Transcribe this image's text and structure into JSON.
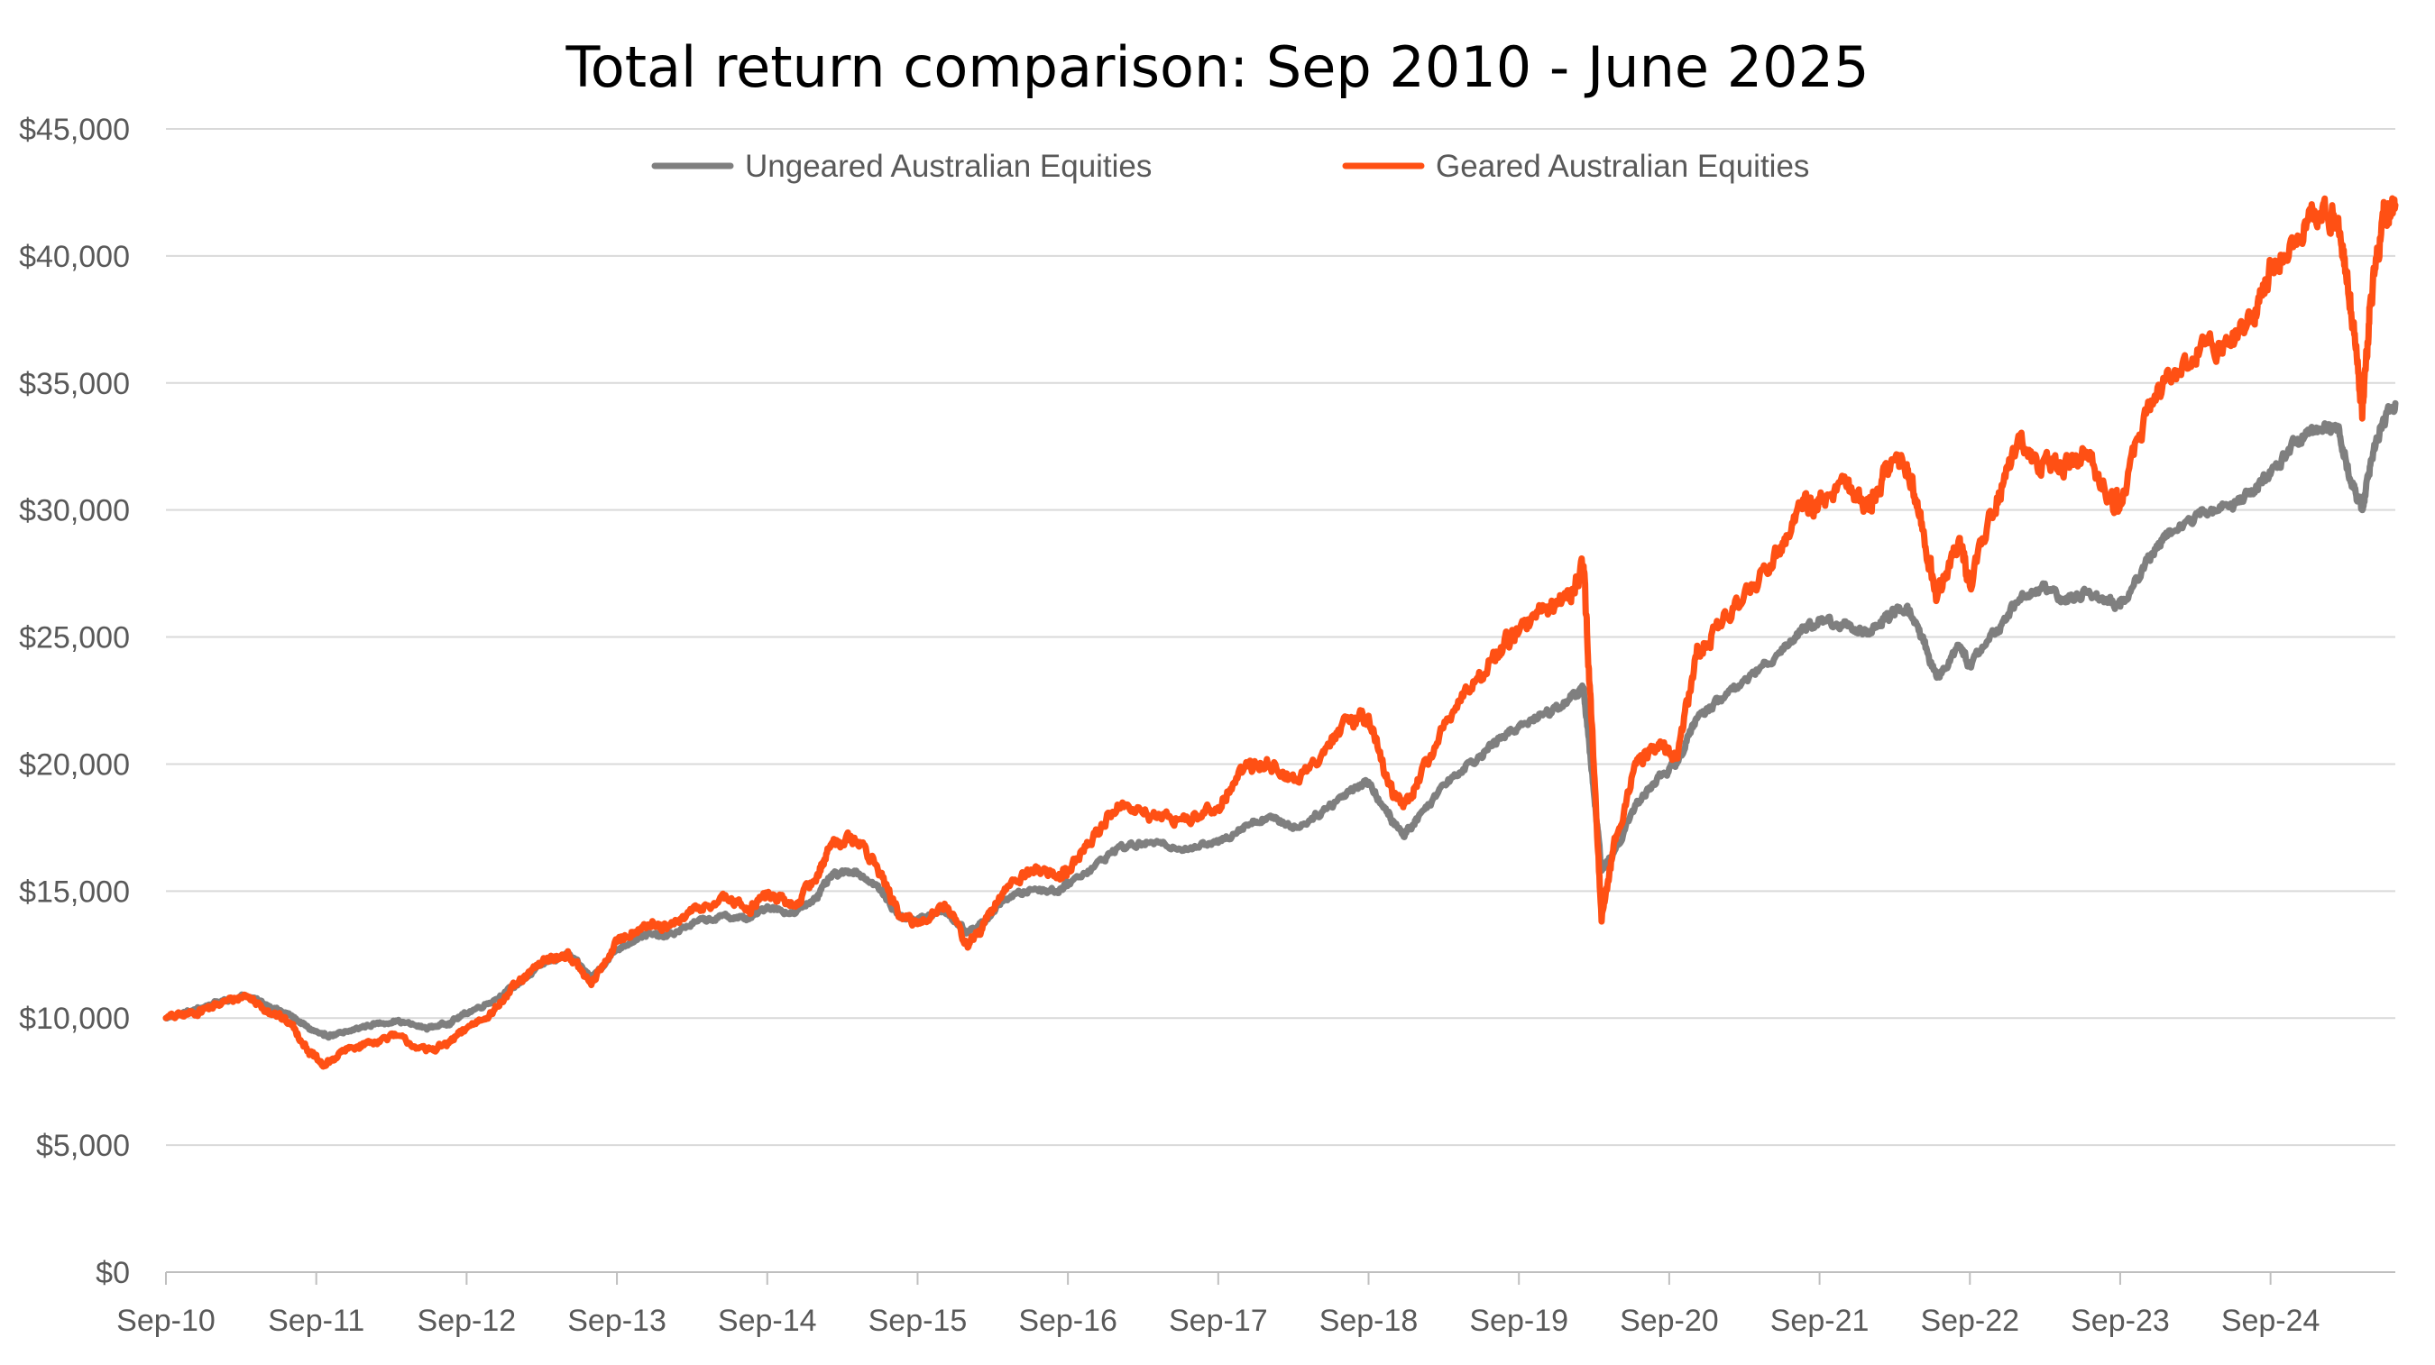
{
  "chart_data": {
    "type": "line",
    "title": "Total return comparison: Sep 2010 - June 2025",
    "xlabel": "",
    "ylabel": "",
    "ylim": [
      0,
      45000
    ],
    "xlim": [
      2010.67,
      2025.5
    ],
    "yticks": [
      0,
      5000,
      10000,
      15000,
      20000,
      25000,
      30000,
      35000,
      40000,
      45000
    ],
    "ytick_labels": [
      "$0",
      "$5,000",
      "$10,000",
      "$15,000",
      "$20,000",
      "$25,000",
      "$30,000",
      "$35,000",
      "$40,000",
      "$45,000"
    ],
    "xticks": [
      2010.67,
      2011.67,
      2012.67,
      2013.67,
      2014.67,
      2015.67,
      2016.67,
      2017.67,
      2018.67,
      2019.67,
      2020.67,
      2021.67,
      2022.67,
      2023.67,
      2024.67
    ],
    "xtick_labels": [
      "Sep-10",
      "Sep-11",
      "Sep-12",
      "Sep-13",
      "Sep-14",
      "Sep-15",
      "Sep-16",
      "Sep-17",
      "Sep-18",
      "Sep-19",
      "Sep-20",
      "Sep-21",
      "Sep-22",
      "Sep-23",
      "Sep-24"
    ],
    "grid": "horizontal",
    "legend_position": "top-center",
    "series": [
      {
        "name": "Ungeared Australian Equities",
        "color": "#7f7f7f",
        "points": [
          [
            2010.67,
            10000
          ],
          [
            2010.85,
            10300
          ],
          [
            2011.0,
            10600
          ],
          [
            2011.2,
            10900
          ],
          [
            2011.35,
            10500
          ],
          [
            2011.5,
            10100
          ],
          [
            2011.62,
            9600
          ],
          [
            2011.72,
            9300
          ],
          [
            2011.85,
            9400
          ],
          [
            2012.0,
            9700
          ],
          [
            2012.2,
            9900
          ],
          [
            2012.4,
            9600
          ],
          [
            2012.55,
            9800
          ],
          [
            2012.67,
            10200
          ],
          [
            2012.85,
            10700
          ],
          [
            2013.0,
            11300
          ],
          [
            2013.2,
            12200
          ],
          [
            2013.35,
            12500
          ],
          [
            2013.5,
            11600
          ],
          [
            2013.67,
            12700
          ],
          [
            2013.85,
            13300
          ],
          [
            2014.0,
            13200
          ],
          [
            2014.2,
            13800
          ],
          [
            2014.4,
            14000
          ],
          [
            2014.55,
            13900
          ],
          [
            2014.67,
            14400
          ],
          [
            2014.85,
            14100
          ],
          [
            2015.0,
            14800
          ],
          [
            2015.1,
            15600
          ],
          [
            2015.25,
            15800
          ],
          [
            2015.4,
            15200
          ],
          [
            2015.55,
            14000
          ],
          [
            2015.67,
            13900
          ],
          [
            2015.85,
            14200
          ],
          [
            2016.0,
            13400
          ],
          [
            2016.1,
            13700
          ],
          [
            2016.25,
            14700
          ],
          [
            2016.45,
            15100
          ],
          [
            2016.6,
            15000
          ],
          [
            2016.67,
            15300
          ],
          [
            2016.85,
            16000
          ],
          [
            2017.0,
            16700
          ],
          [
            2017.2,
            16900
          ],
          [
            2017.45,
            16700
          ],
          [
            2017.67,
            16900
          ],
          [
            2017.85,
            17600
          ],
          [
            2018.0,
            17900
          ],
          [
            2018.2,
            17500
          ],
          [
            2018.4,
            18300
          ],
          [
            2018.55,
            19000
          ],
          [
            2018.67,
            19300
          ],
          [
            2018.8,
            18000
          ],
          [
            2018.9,
            17200
          ],
          [
            2019.0,
            17900
          ],
          [
            2019.2,
            19400
          ],
          [
            2019.4,
            20300
          ],
          [
            2019.55,
            21000
          ],
          [
            2019.67,
            21500
          ],
          [
            2019.85,
            22000
          ],
          [
            2020.0,
            22500
          ],
          [
            2020.1,
            23000
          ],
          [
            2020.15,
            20000
          ],
          [
            2020.22,
            15800
          ],
          [
            2020.3,
            16500
          ],
          [
            2020.45,
            18400
          ],
          [
            2020.6,
            19500
          ],
          [
            2020.72,
            20000
          ],
          [
            2020.85,
            21800
          ],
          [
            2021.0,
            22500
          ],
          [
            2021.2,
            23400
          ],
          [
            2021.4,
            24400
          ],
          [
            2021.55,
            25300
          ],
          [
            2021.67,
            25600
          ],
          [
            2021.85,
            25500
          ],
          [
            2022.0,
            25100
          ],
          [
            2022.1,
            25700
          ],
          [
            2022.25,
            26200
          ],
          [
            2022.35,
            25000
          ],
          [
            2022.45,
            23400
          ],
          [
            2022.6,
            24600
          ],
          [
            2022.67,
            23900
          ],
          [
            2022.85,
            25300
          ],
          [
            2023.0,
            26500
          ],
          [
            2023.15,
            27000
          ],
          [
            2023.3,
            26400
          ],
          [
            2023.45,
            26800
          ],
          [
            2023.6,
            26400
          ],
          [
            2023.67,
            26200
          ],
          [
            2023.85,
            28000
          ],
          [
            2024.0,
            29200
          ],
          [
            2024.2,
            29800
          ],
          [
            2024.4,
            30200
          ],
          [
            2024.55,
            30700
          ],
          [
            2024.67,
            31400
          ],
          [
            2024.85,
            32800
          ],
          [
            2025.0,
            33200
          ],
          [
            2025.12,
            33300
          ],
          [
            2025.2,
            31200
          ],
          [
            2025.28,
            30000
          ],
          [
            2025.33,
            31700
          ],
          [
            2025.42,
            33600
          ],
          [
            2025.5,
            34200
          ]
        ]
      },
      {
        "name": "Geared Australian Equities",
        "color": "#ff5014",
        "points": [
          [
            2010.67,
            10000
          ],
          [
            2010.85,
            10200
          ],
          [
            2011.0,
            10500
          ],
          [
            2011.2,
            10900
          ],
          [
            2011.35,
            10300
          ],
          [
            2011.5,
            9800
          ],
          [
            2011.62,
            8700
          ],
          [
            2011.72,
            8100
          ],
          [
            2011.85,
            8700
          ],
          [
            2012.0,
            9000
          ],
          [
            2012.2,
            9300
          ],
          [
            2012.4,
            8700
          ],
          [
            2012.55,
            9000
          ],
          [
            2012.67,
            9600
          ],
          [
            2012.85,
            10300
          ],
          [
            2013.0,
            11300
          ],
          [
            2013.2,
            12300
          ],
          [
            2013.35,
            12500
          ],
          [
            2013.5,
            11300
          ],
          [
            2013.67,
            13000
          ],
          [
            2013.85,
            13700
          ],
          [
            2014.0,
            13500
          ],
          [
            2014.2,
            14300
          ],
          [
            2014.4,
            14700
          ],
          [
            2014.55,
            14300
          ],
          [
            2014.67,
            14900
          ],
          [
            2014.85,
            14400
          ],
          [
            2015.0,
            15600
          ],
          [
            2015.1,
            16900
          ],
          [
            2015.25,
            17100
          ],
          [
            2015.4,
            16000
          ],
          [
            2015.55,
            14000
          ],
          [
            2015.67,
            13700
          ],
          [
            2015.85,
            14500
          ],
          [
            2016.0,
            12900
          ],
          [
            2016.1,
            13500
          ],
          [
            2016.25,
            15100
          ],
          [
            2016.45,
            15900
          ],
          [
            2016.6,
            15600
          ],
          [
            2016.67,
            15800
          ],
          [
            2016.85,
            17200
          ],
          [
            2017.0,
            18400
          ],
          [
            2017.2,
            18000
          ],
          [
            2017.45,
            17800
          ],
          [
            2017.67,
            18300
          ],
          [
            2017.85,
            19900
          ],
          [
            2018.0,
            20000
          ],
          [
            2018.2,
            19300
          ],
          [
            2018.4,
            20800
          ],
          [
            2018.55,
            21700
          ],
          [
            2018.67,
            21900
          ],
          [
            2018.8,
            19200
          ],
          [
            2018.9,
            18300
          ],
          [
            2019.0,
            19300
          ],
          [
            2019.2,
            21800
          ],
          [
            2019.4,
            23400
          ],
          [
            2019.55,
            24600
          ],
          [
            2019.67,
            25200
          ],
          [
            2019.85,
            26200
          ],
          [
            2020.0,
            26500
          ],
          [
            2020.1,
            27800
          ],
          [
            2020.15,
            22000
          ],
          [
            2020.22,
            13800
          ],
          [
            2020.3,
            16800
          ],
          [
            2020.45,
            20000
          ],
          [
            2020.6,
            20800
          ],
          [
            2020.72,
            20300
          ],
          [
            2020.85,
            24200
          ],
          [
            2021.0,
            25500
          ],
          [
            2021.2,
            26800
          ],
          [
            2021.4,
            28500
          ],
          [
            2021.55,
            30200
          ],
          [
            2021.67,
            30300
          ],
          [
            2021.85,
            30900
          ],
          [
            2022.0,
            30000
          ],
          [
            2022.1,
            31500
          ],
          [
            2022.25,
            31800
          ],
          [
            2022.35,
            29500
          ],
          [
            2022.45,
            26500
          ],
          [
            2022.6,
            28900
          ],
          [
            2022.67,
            27000
          ],
          [
            2022.85,
            30500
          ],
          [
            2023.0,
            32500
          ],
          [
            2023.15,
            31800
          ],
          [
            2023.3,
            31700
          ],
          [
            2023.45,
            32200
          ],
          [
            2023.6,
            30500
          ],
          [
            2023.67,
            30300
          ],
          [
            2023.85,
            34000
          ],
          [
            2024.0,
            35300
          ],
          [
            2024.2,
            36300
          ],
          [
            2024.4,
            36500
          ],
          [
            2024.55,
            37500
          ],
          [
            2024.67,
            39500
          ],
          [
            2024.85,
            40800
          ],
          [
            2025.0,
            41700
          ],
          [
            2025.12,
            41500
          ],
          [
            2025.2,
            38500
          ],
          [
            2025.28,
            33600
          ],
          [
            2025.33,
            38000
          ],
          [
            2025.42,
            41500
          ],
          [
            2025.5,
            42000
          ]
        ]
      }
    ]
  }
}
